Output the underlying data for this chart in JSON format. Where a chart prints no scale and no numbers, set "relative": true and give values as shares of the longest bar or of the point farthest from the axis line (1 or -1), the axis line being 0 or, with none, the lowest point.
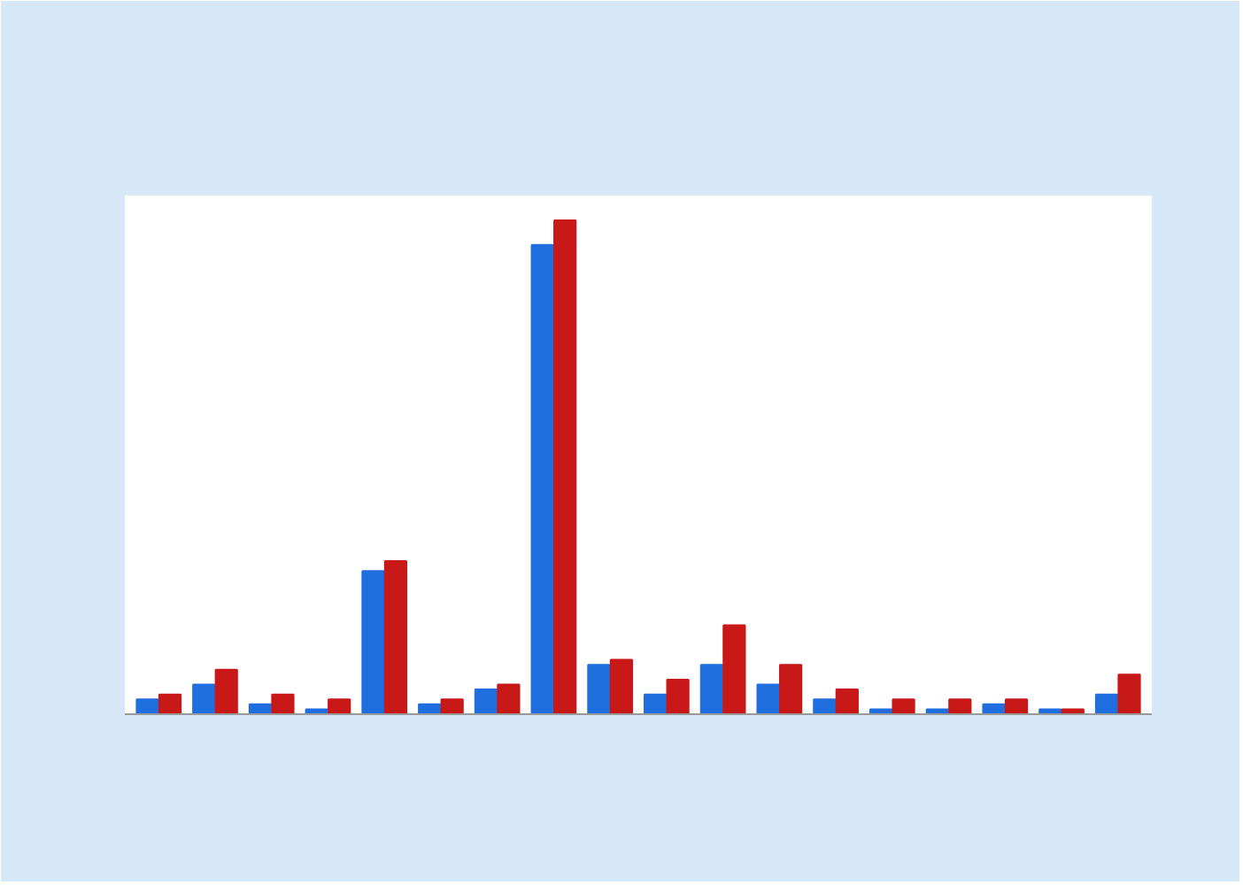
{
  "chart_data": {
    "type": "bar",
    "relative": true,
    "categories": [
      null,
      null,
      null,
      null,
      null,
      null,
      null,
      null,
      null,
      null,
      null,
      null,
      null,
      null,
      null,
      null,
      null,
      null
    ],
    "series": [
      {
        "color": "#1f6fe0",
        "values": [
          0.03,
          0.06,
          0.02,
          0.01,
          0.29,
          0.02,
          0.05,
          0.95,
          0.1,
          0.04,
          0.1,
          0.06,
          0.03,
          0.01,
          0.01,
          0.02,
          0.01,
          0.04
        ]
      },
      {
        "color": "#c81818",
        "values": [
          0.04,
          0.09,
          0.04,
          0.03,
          0.31,
          0.03,
          0.06,
          1,
          0.11,
          0.07,
          0.18,
          0.1,
          0.05,
          0.03,
          0.03,
          0.03,
          0.01,
          0.08
        ]
      }
    ]
  }
}
